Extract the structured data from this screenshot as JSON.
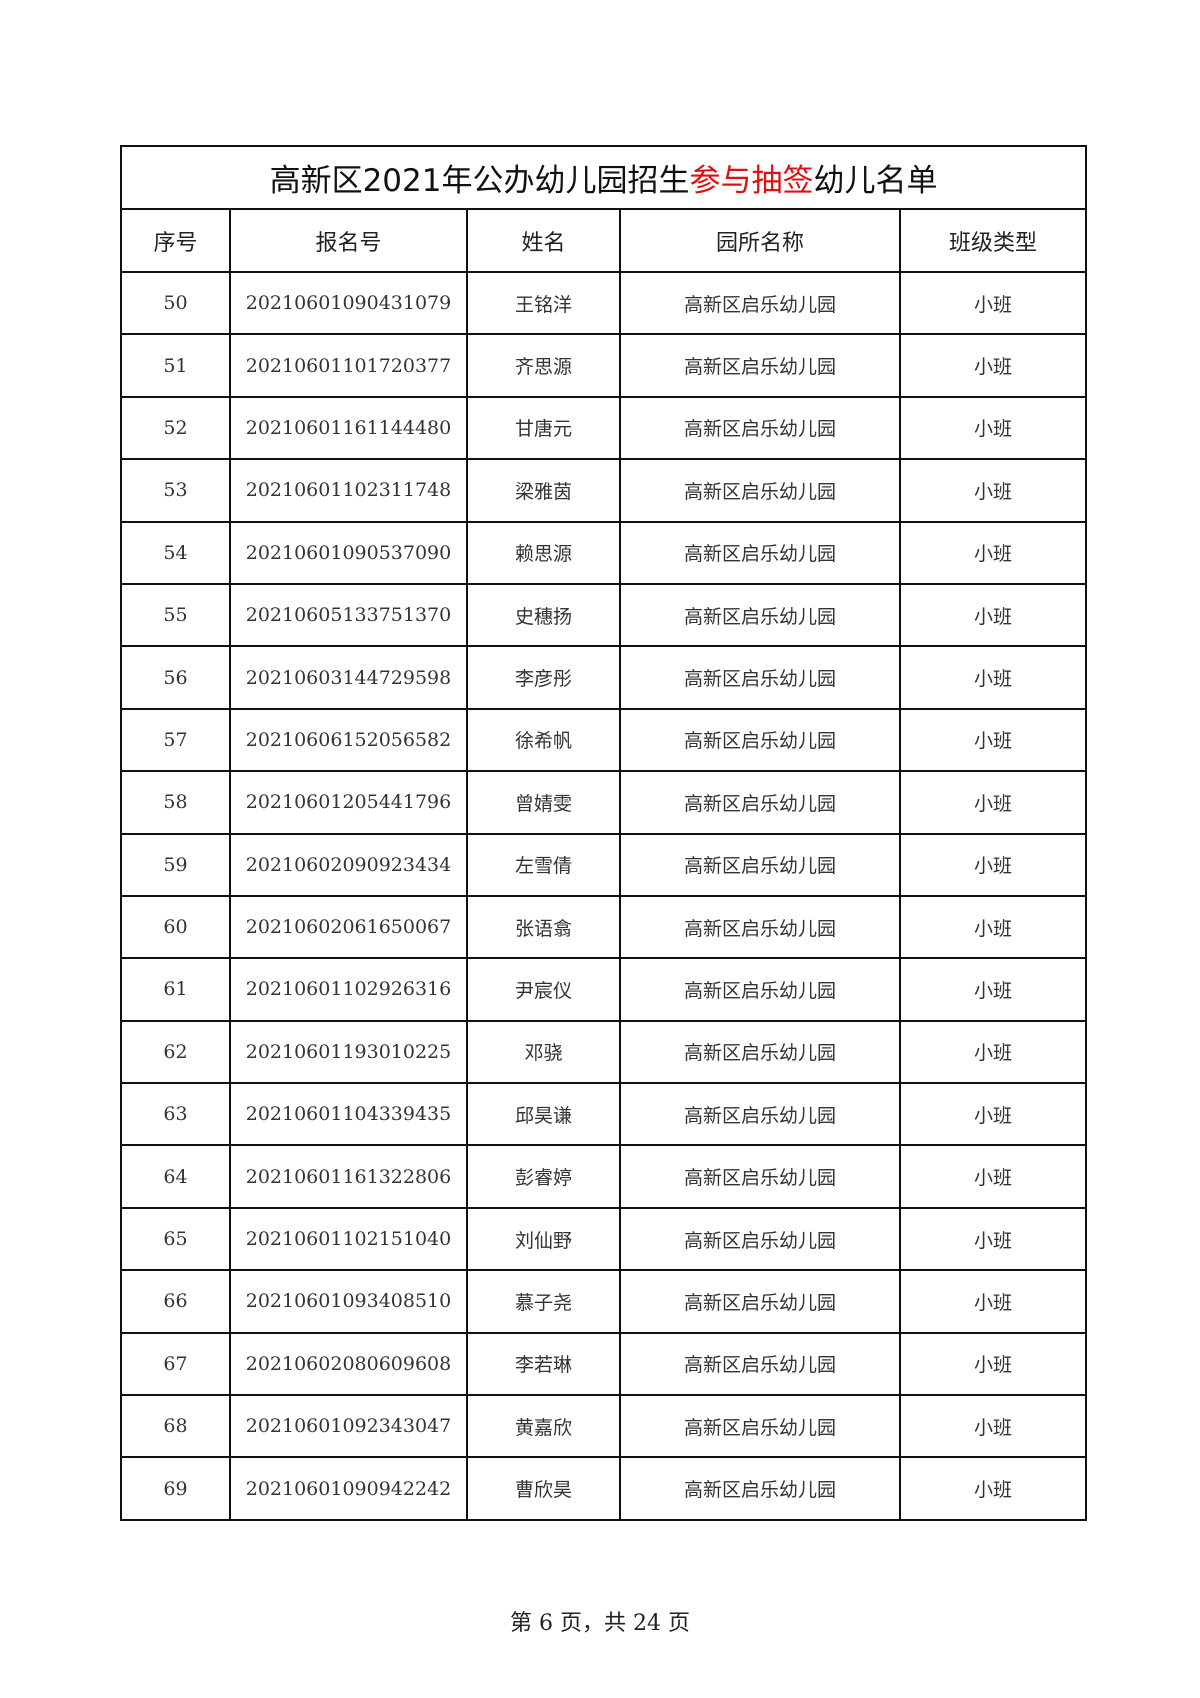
{
  "title": {
    "part1": "高新区2021年公办幼儿园招生",
    "highlight": "参与抽签",
    "part2": "幼儿名单",
    "highlight_color": "#e01010"
  },
  "headers": [
    "序号",
    "报名号",
    "姓名",
    "园所名称",
    "班级类型"
  ],
  "rows": [
    [
      "50",
      "20210601090431079",
      "王铭洋",
      "高新区启乐幼儿园",
      "小班"
    ],
    [
      "51",
      "20210601101720377",
      "齐思源",
      "高新区启乐幼儿园",
      "小班"
    ],
    [
      "52",
      "20210601161144480",
      "甘唐元",
      "高新区启乐幼儿园",
      "小班"
    ],
    [
      "53",
      "20210601102311748",
      "梁雅茵",
      "高新区启乐幼儿园",
      "小班"
    ],
    [
      "54",
      "20210601090537090",
      "赖思源",
      "高新区启乐幼儿园",
      "小班"
    ],
    [
      "55",
      "20210605133751370",
      "史穗扬",
      "高新区启乐幼儿园",
      "小班"
    ],
    [
      "56",
      "20210603144729598",
      "李彦彤",
      "高新区启乐幼儿园",
      "小班"
    ],
    [
      "57",
      "20210606152056582",
      "徐希帆",
      "高新区启乐幼儿园",
      "小班"
    ],
    [
      "58",
      "20210601205441796",
      "曾婧雯",
      "高新区启乐幼儿园",
      "小班"
    ],
    [
      "59",
      "20210602090923434",
      "左雪倩",
      "高新区启乐幼儿园",
      "小班"
    ],
    [
      "60",
      "20210602061650067",
      "张语翕",
      "高新区启乐幼儿园",
      "小班"
    ],
    [
      "61",
      "20210601102926316",
      "尹宸仪",
      "高新区启乐幼儿园",
      "小班"
    ],
    [
      "62",
      "20210601193010225",
      "邓骁",
      "高新区启乐幼儿园",
      "小班"
    ],
    [
      "63",
      "20210601104339435",
      "邱昊谦",
      "高新区启乐幼儿园",
      "小班"
    ],
    [
      "64",
      "20210601161322806",
      "彭睿婷",
      "高新区启乐幼儿园",
      "小班"
    ],
    [
      "65",
      "20210601102151040",
      "刘仙野",
      "高新区启乐幼儿园",
      "小班"
    ],
    [
      "66",
      "20210601093408510",
      "慕子尧",
      "高新区启乐幼儿园",
      "小班"
    ],
    [
      "67",
      "20210602080609608",
      "李若琳",
      "高新区启乐幼儿园",
      "小班"
    ],
    [
      "68",
      "20210601092343047",
      "黄嘉欣",
      "高新区启乐幼儿园",
      "小班"
    ],
    [
      "69",
      "20210601090942242",
      "曹欣昊",
      "高新区启乐幼儿园",
      "小班"
    ]
  ],
  "footer": "第 6 页，共 24 页"
}
